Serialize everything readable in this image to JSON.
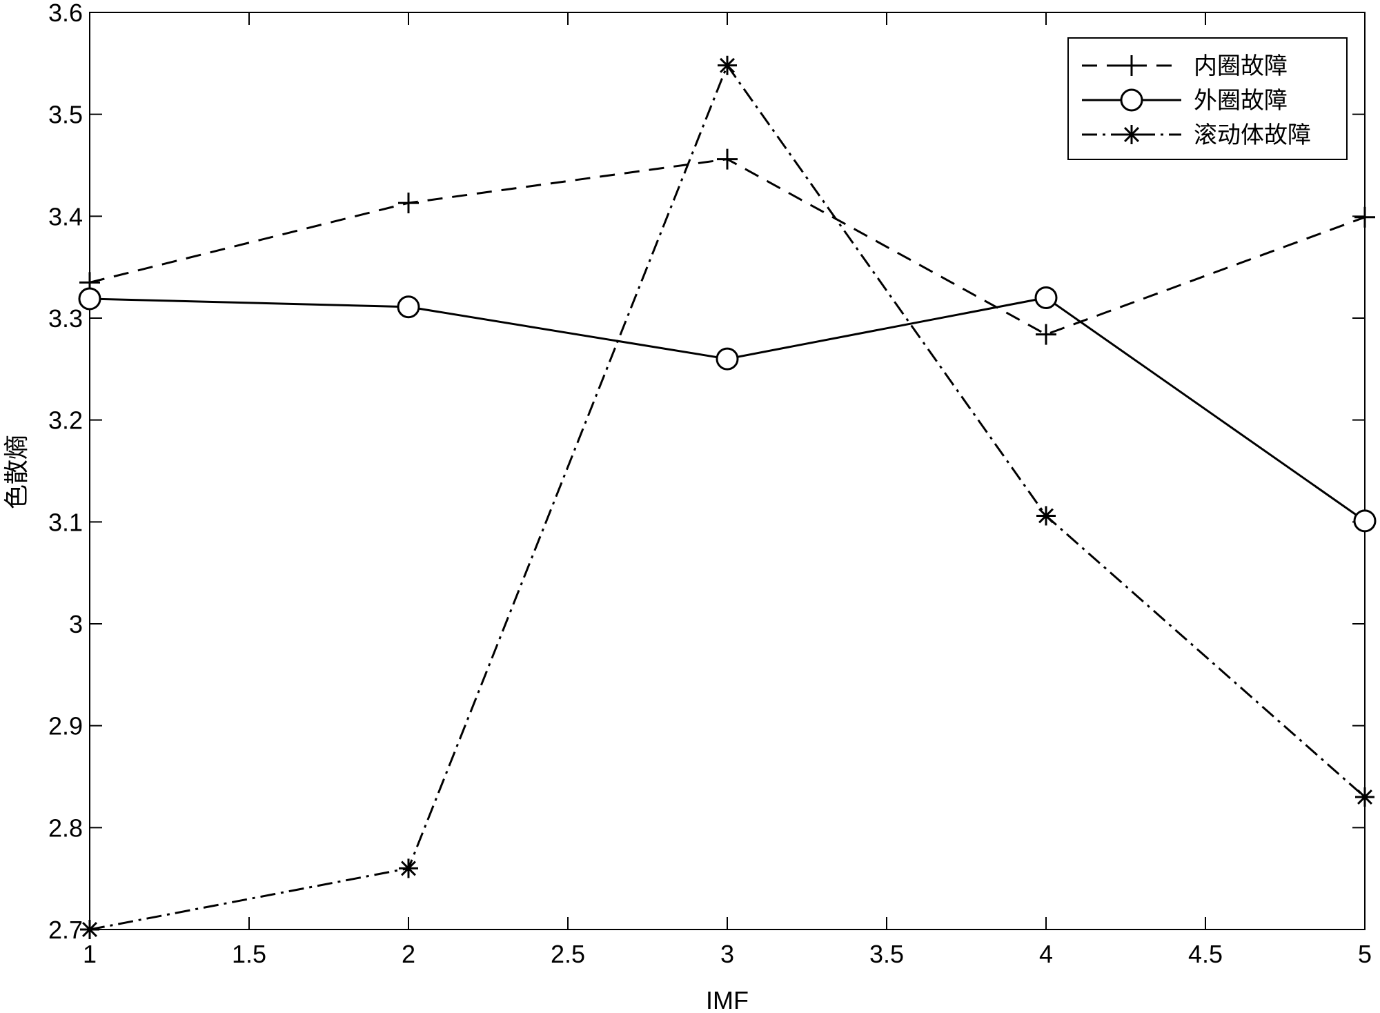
{
  "chart_data": {
    "type": "line",
    "title": "",
    "xlabel": "IMF",
    "ylabel": "色散熵",
    "xlim": [
      1,
      5
    ],
    "ylim": [
      2.7,
      3.6
    ],
    "xticks": [
      1,
      1.5,
      2,
      2.5,
      3,
      3.5,
      4,
      4.5,
      5
    ],
    "xtick_labels": [
      "1",
      "1.5",
      "2",
      "2.5",
      "3",
      "3.5",
      "4",
      "4.5",
      "5"
    ],
    "yticks": [
      2.7,
      2.8,
      2.9,
      3.0,
      3.1,
      3.2,
      3.3,
      3.4,
      3.5,
      3.6
    ],
    "ytick_labels": [
      "2.7",
      "2.8",
      "2.9",
      "3",
      "3.1",
      "3.2",
      "3.3",
      "3.4",
      "3.5",
      "3.6"
    ],
    "grid": false,
    "legend_position": "top-right",
    "x": [
      1,
      2,
      3,
      4,
      5
    ],
    "series": [
      {
        "name": "内圈故障",
        "values": [
          3.335,
          3.413,
          3.456,
          3.284,
          3.399
        ],
        "line_style": "dashed",
        "marker": "plus",
        "color": "#000000"
      },
      {
        "name": "外圈故障",
        "values": [
          3.319,
          3.311,
          3.26,
          3.32,
          3.101
        ],
        "line_style": "solid",
        "marker": "circle",
        "color": "#000000"
      },
      {
        "name": "滚动体故障",
        "values": [
          2.7,
          2.76,
          3.548,
          3.106,
          2.83
        ],
        "line_style": "dashdot",
        "marker": "asterisk",
        "color": "#000000"
      }
    ]
  }
}
